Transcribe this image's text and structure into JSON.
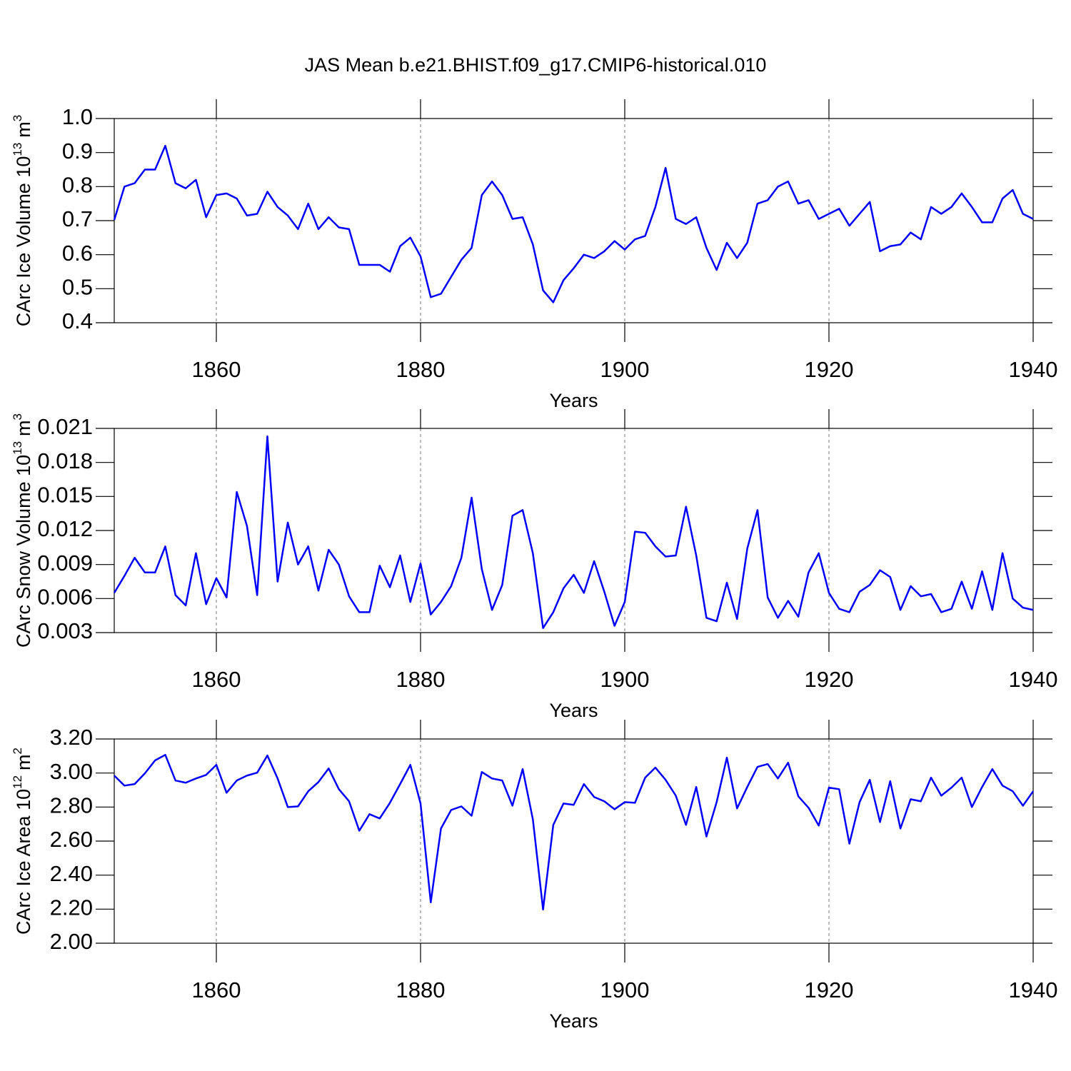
{
  "chart_data": [
    {
      "type": "line",
      "title": "JAS Mean b.e21.BHIST.f09_g17.CMIP6-historical.010",
      "xlabel": "Years",
      "ylabel": {
        "text": "CArc Ice Volume 10",
        "exponent": "13",
        "unit": "m",
        "unit_exponent": "3"
      },
      "color": "#0000ff",
      "grid": true,
      "xlim": [
        1850,
        1940
      ],
      "xticks": [
        1860,
        1880,
        1900,
        1920,
        1940
      ],
      "ylim": [
        0.4,
        1.0
      ],
      "yticks": [
        0.4,
        0.5,
        0.6,
        0.7,
        0.8,
        0.9,
        {
          "value": 1,
          "label": "1.0"
        }
      ],
      "x": [
        1850,
        1851,
        1852,
        1853,
        1854,
        1855,
        1856,
        1857,
        1858,
        1859,
        1860,
        1861,
        1862,
        1863,
        1864,
        1865,
        1866,
        1867,
        1868,
        1869,
        1870,
        1871,
        1872,
        1873,
        1874,
        1875,
        1876,
        1877,
        1878,
        1879,
        1880,
        1881,
        1882,
        1883,
        1884,
        1885,
        1886,
        1887,
        1888,
        1889,
        1890,
        1891,
        1892,
        1893,
        1894,
        1895,
        1896,
        1897,
        1898,
        1899,
        1900,
        1901,
        1902,
        1903,
        1904,
        1905,
        1906,
        1907,
        1908,
        1909,
        1910,
        1911,
        1912,
        1913,
        1914,
        1915,
        1916,
        1917,
        1918,
        1919,
        1920,
        1921,
        1922,
        1923,
        1924,
        1925,
        1926,
        1927,
        1928,
        1929,
        1930,
        1931,
        1932,
        1933,
        1934,
        1935,
        1936,
        1937,
        1938,
        1939,
        1940
      ],
      "values": [
        0.702,
        0.8,
        0.81,
        0.85,
        0.85,
        0.92,
        0.81,
        0.795,
        0.82,
        0.71,
        0.775,
        0.78,
        0.765,
        0.715,
        0.72,
        0.785,
        0.74,
        0.715,
        0.675,
        0.75,
        0.675,
        0.71,
        0.68,
        0.675,
        0.57,
        0.57,
        0.57,
        0.55,
        0.625,
        0.65,
        0.595,
        0.475,
        0.485,
        0.535,
        0.585,
        0.62,
        0.775,
        0.815,
        0.775,
        0.705,
        0.71,
        0.63,
        0.495,
        0.46,
        0.525,
        0.56,
        0.6,
        0.59,
        0.61,
        0.64,
        0.615,
        0.645,
        0.655,
        0.74,
        0.855,
        0.705,
        0.69,
        0.71,
        0.62,
        0.555,
        0.635,
        0.59,
        0.635,
        0.75,
        0.76,
        0.8,
        0.815,
        0.75,
        0.76,
        0.705,
        0.72,
        0.735,
        0.685,
        0.72,
        0.755,
        0.61,
        0.625,
        0.63,
        0.665,
        0.645,
        0.74,
        0.72,
        0.74,
        0.78,
        0.74,
        0.695,
        0.695,
        0.765,
        0.79,
        0.72,
        0.705
      ]
    },
    {
      "type": "line",
      "xlabel": "Years",
      "ylabel": {
        "text": "CArc Snow Volume 10",
        "exponent": "13",
        "unit": "m",
        "unit_exponent": "3"
      },
      "color": "#0000ff",
      "grid": true,
      "xlim": [
        1850,
        1940
      ],
      "xticks": [
        1860,
        1880,
        1900,
        1920,
        1940
      ],
      "ylim": [
        0.003,
        0.021
      ],
      "yticks": [
        0.003,
        0.006,
        0.009,
        0.012,
        0.015,
        0.018,
        0.021
      ],
      "x": [
        1850,
        1851,
        1852,
        1853,
        1854,
        1855,
        1856,
        1857,
        1858,
        1859,
        1860,
        1861,
        1862,
        1863,
        1864,
        1865,
        1866,
        1867,
        1868,
        1869,
        1870,
        1871,
        1872,
        1873,
        1874,
        1875,
        1876,
        1877,
        1878,
        1879,
        1880,
        1881,
        1882,
        1883,
        1884,
        1885,
        1886,
        1887,
        1888,
        1889,
        1890,
        1891,
        1892,
        1893,
        1894,
        1895,
        1896,
        1897,
        1898,
        1899,
        1900,
        1901,
        1902,
        1903,
        1904,
        1905,
        1906,
        1907,
        1908,
        1909,
        1910,
        1911,
        1912,
        1913,
        1914,
        1915,
        1916,
        1917,
        1918,
        1919,
        1920,
        1921,
        1922,
        1923,
        1924,
        1925,
        1926,
        1927,
        1928,
        1929,
        1930,
        1931,
        1932,
        1933,
        1934,
        1935,
        1936,
        1937,
        1938,
        1939,
        1940
      ],
      "values": [
        0.0065,
        0.008,
        0.0096,
        0.0083,
        0.0083,
        0.0106,
        0.0063,
        0.0054,
        0.01,
        0.0055,
        0.0078,
        0.0061,
        0.0154,
        0.0124,
        0.0063,
        0.0203,
        0.0075,
        0.0127,
        0.009,
        0.0106,
        0.0067,
        0.0103,
        0.009,
        0.0062,
        0.0048,
        0.0048,
        0.0089,
        0.007,
        0.0098,
        0.0057,
        0.0091,
        0.0046,
        0.0057,
        0.0071,
        0.0096,
        0.0149,
        0.0086,
        0.005,
        0.0072,
        0.0133,
        0.0138,
        0.01,
        0.0034,
        0.0048,
        0.0069,
        0.0081,
        0.0065,
        0.0093,
        0.0066,
        0.0036,
        0.0057,
        0.0119,
        0.0118,
        0.0106,
        0.0097,
        0.0098,
        0.0141,
        0.0098,
        0.0043,
        0.004,
        0.0074,
        0.0042,
        0.0104,
        0.0138,
        0.0061,
        0.0043,
        0.0058,
        0.0044,
        0.0083,
        0.01,
        0.0065,
        0.0051,
        0.0048,
        0.0066,
        0.0072,
        0.0085,
        0.0079,
        0.005,
        0.0071,
        0.0062,
        0.0064,
        0.0048,
        0.0051,
        0.0075,
        0.0051,
        0.0084,
        0.005,
        0.01,
        0.006,
        0.0052,
        0.005
      ]
    },
    {
      "type": "line",
      "xlabel": "Years",
      "ylabel": {
        "text": "CArc Ice Area 10",
        "exponent": "12",
        "unit": "m",
        "unit_exponent": "2"
      },
      "color": "#0000ff",
      "grid": true,
      "xlim": [
        1850,
        1940
      ],
      "xticks": [
        1860,
        1880,
        1900,
        1920,
        1940
      ],
      "ylim": [
        2.0,
        3.2
      ],
      "yticks": [
        {
          "value": 2,
          "label": "2.00"
        },
        {
          "value": 2.2,
          "label": "2.20"
        },
        {
          "value": 2.4,
          "label": "2.40"
        },
        {
          "value": 2.6,
          "label": "2.60"
        },
        {
          "value": 2.8,
          "label": "2.80"
        },
        {
          "value": 3,
          "label": "3.00"
        },
        {
          "value": 3.2,
          "label": "3.20"
        }
      ],
      "x": [
        1850,
        1851,
        1852,
        1853,
        1854,
        1855,
        1856,
        1857,
        1858,
        1859,
        1860,
        1861,
        1862,
        1863,
        1864,
        1865,
        1866,
        1867,
        1868,
        1869,
        1870,
        1871,
        1872,
        1873,
        1874,
        1875,
        1876,
        1877,
        1878,
        1879,
        1880,
        1881,
        1882,
        1883,
        1884,
        1885,
        1886,
        1887,
        1888,
        1889,
        1890,
        1891,
        1892,
        1893,
        1894,
        1895,
        1896,
        1897,
        1898,
        1899,
        1900,
        1901,
        1902,
        1903,
        1904,
        1905,
        1906,
        1907,
        1908,
        1909,
        1910,
        1911,
        1912,
        1913,
        1914,
        1915,
        1916,
        1917,
        1918,
        1919,
        1920,
        1921,
        1922,
        1923,
        1924,
        1925,
        1926,
        1927,
        1928,
        1929,
        1930,
        1931,
        1932,
        1933,
        1934,
        1935,
        1936,
        1937,
        1938,
        1939,
        1940
      ],
      "values": [
        2.985,
        2.926,
        2.935,
        2.998,
        3.074,
        3.107,
        2.956,
        2.943,
        2.968,
        2.989,
        3.048,
        2.884,
        2.956,
        2.985,
        3.002,
        3.103,
        2.968,
        2.8,
        2.804,
        2.893,
        2.947,
        3.027,
        2.905,
        2.834,
        2.661,
        2.758,
        2.733,
        2.825,
        2.935,
        3.048,
        2.821,
        2.24,
        2.674,
        2.783,
        2.804,
        2.749,
        3.006,
        2.968,
        2.956,
        2.808,
        3.023,
        2.728,
        2.198,
        2.695,
        2.821,
        2.813,
        2.935,
        2.859,
        2.834,
        2.787,
        2.829,
        2.825,
        2.973,
        3.032,
        2.96,
        2.867,
        2.695,
        2.918,
        2.627,
        2.829,
        3.091,
        2.792,
        2.918,
        3.036,
        3.053,
        2.968,
        3.061,
        2.863,
        2.796,
        2.691,
        2.914,
        2.905,
        2.585,
        2.829,
        2.96,
        2.712,
        2.952,
        2.674,
        2.846,
        2.834,
        2.973,
        2.867,
        2.914,
        2.973,
        2.8,
        2.918,
        3.023,
        2.926,
        2.893,
        2.808,
        2.893
      ]
    }
  ]
}
